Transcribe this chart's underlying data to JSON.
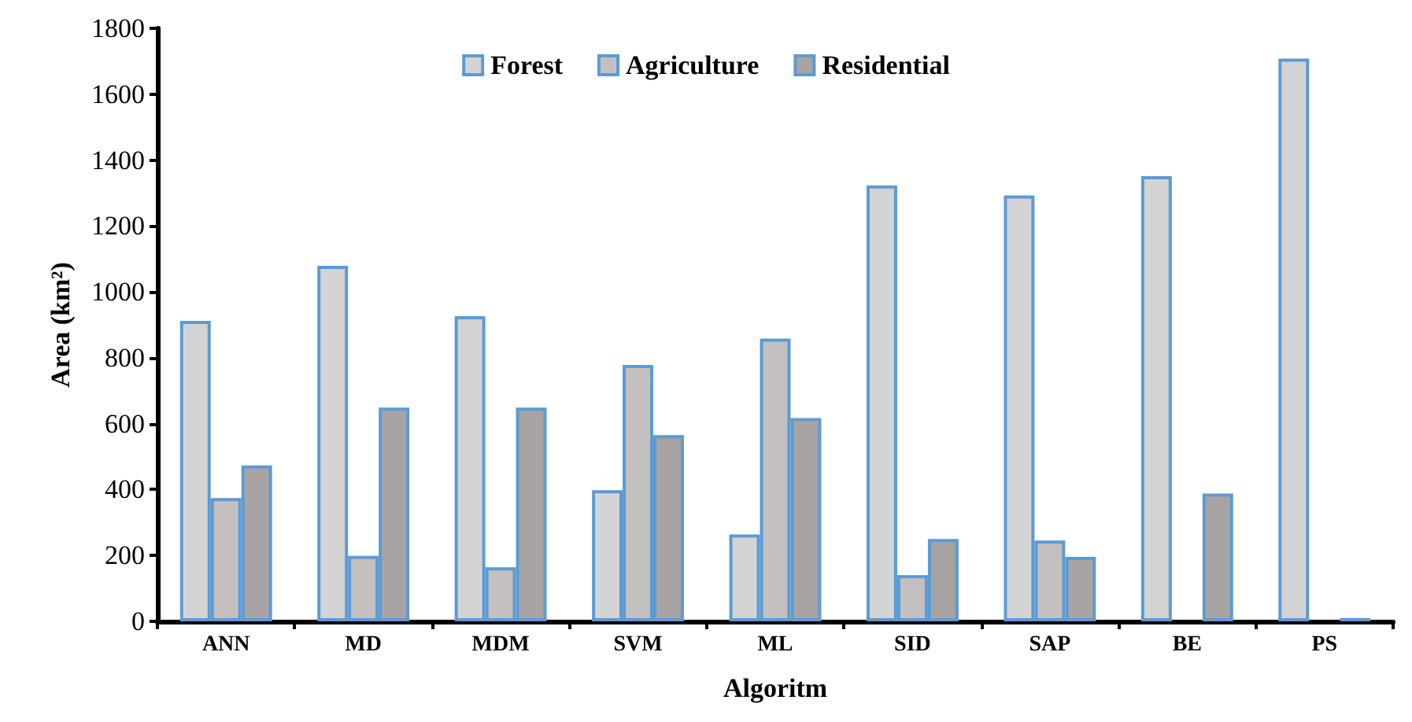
{
  "chart_data": {
    "type": "bar",
    "xlabel": "Algoritm",
    "ylabel": "Area (km²)",
    "categories": [
      "ANN",
      "MD",
      "MDM",
      "SVM",
      "ML",
      "SID",
      "SAP",
      "BE",
      "PS"
    ],
    "series": [
      {
        "name": "Forest",
        "color": "#d4d4d4",
        "values": [
          912,
          1079,
          926,
          398,
          264,
          1323,
          1293,
          1351,
          1708
        ]
      },
      {
        "name": "Agriculture",
        "color": "#c4c0c0",
        "values": [
          374,
          199,
          164,
          778,
          858,
          140,
          245,
          null,
          null
        ]
      },
      {
        "name": "Residential",
        "color": "#a8a4a4",
        "values": [
          473,
          649,
          649,
          565,
          617,
          250,
          196,
          388,
          10
        ]
      }
    ],
    "ylim": [
      0,
      1800
    ],
    "yticks": [
      0,
      200,
      400,
      600,
      800,
      1000,
      1200,
      1400,
      1600,
      1800
    ],
    "grid": false,
    "legend": "top"
  }
}
